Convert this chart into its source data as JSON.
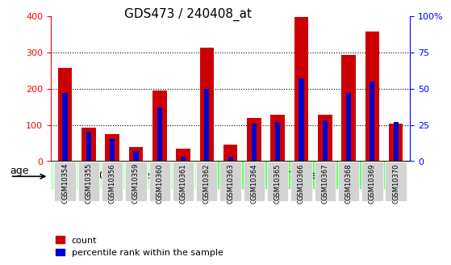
{
  "title": "GDS473 / 240408_at",
  "samples": [
    "GSM10354",
    "GSM10355",
    "GSM10356",
    "GSM10359",
    "GSM10360",
    "GSM10361",
    "GSM10362",
    "GSM10363",
    "GSM10364",
    "GSM10365",
    "GSM10366",
    "GSM10367",
    "GSM10368",
    "GSM10369",
    "GSM10370"
  ],
  "counts": [
    258,
    93,
    75,
    38,
    195,
    35,
    312,
    45,
    120,
    128,
    398,
    128,
    293,
    358,
    103
  ],
  "percentile_ranks": [
    47,
    20,
    15,
    7,
    37,
    3,
    50,
    3,
    26,
    27,
    57,
    28,
    47,
    55,
    27
  ],
  "group1_label": "20-29 years",
  "group1_indices": [
    0,
    1,
    2,
    3,
    4,
    5,
    6
  ],
  "group2_label": "65-71 years",
  "group2_indices": [
    7,
    8,
    9,
    10,
    11,
    12,
    13,
    14
  ],
  "age_label": "age",
  "left_axis_color": "red",
  "right_axis_color": "blue",
  "left_ylim": [
    0,
    400
  ],
  "right_ylim": [
    0,
    100
  ],
  "left_yticks": [
    0,
    100,
    200,
    300,
    400
  ],
  "right_yticks": [
    0,
    25,
    50,
    75,
    100
  ],
  "right_yticklabels": [
    "0",
    "25",
    "50",
    "75",
    "100%"
  ],
  "count_color": "#cc0000",
  "percentile_color": "#0000cc",
  "bar_width": 0.6,
  "group1_bg": "#ccffcc",
  "group2_bg": "#66ff66",
  "tick_bg": "#d3d3d3",
  "legend_count": "count",
  "legend_percentile": "percentile rank within the sample",
  "grid_color": "black",
  "grid_linestyle": "dotted"
}
